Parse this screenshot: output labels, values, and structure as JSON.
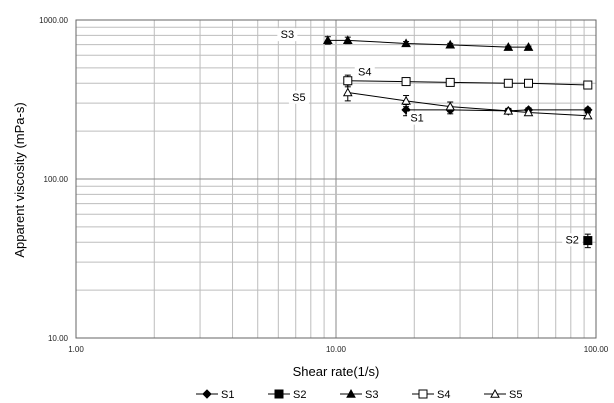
{
  "chart_data": {
    "type": "scatter",
    "xscale": "log",
    "yscale": "log",
    "xlim": [
      1,
      100
    ],
    "ylim": [
      10,
      1000
    ],
    "grid": true,
    "legend_position": "bottom",
    "xlabel": "Shear rate(1/s)",
    "ylabel": "Apparent viscosity (mPa-s)",
    "xticks": [
      {
        "value": 1,
        "label": "1.00"
      },
      {
        "value": 10,
        "label": "10.00"
      },
      {
        "value": 100,
        "label": "100.00"
      }
    ],
    "yticks": [
      {
        "value": 10,
        "label": "10.00"
      },
      {
        "value": 100,
        "label": "100.00"
      },
      {
        "value": 1000,
        "label": "1000.00"
      }
    ],
    "series": [
      {
        "name": "S1",
        "marker": "diamond",
        "color": "#000000",
        "label": {
          "text": "S1",
          "x": 20.5,
          "y": 233
        },
        "points": [
          {
            "x": 18.6,
            "y": 272,
            "err": 22
          },
          {
            "x": 27.5,
            "y": 272,
            "err": 15
          },
          {
            "x": 46,
            "y": 268,
            "err": 8
          },
          {
            "x": 55,
            "y": 272,
            "err": 8
          },
          {
            "x": 93,
            "y": 272,
            "err": 8
          }
        ]
      },
      {
        "name": "S2",
        "marker": "square",
        "color": "#000000",
        "label": {
          "text": "S2",
          "x": 81,
          "y": 40
        },
        "points": [
          {
            "x": 93,
            "y": 41,
            "err": 4
          }
        ]
      },
      {
        "name": "S3",
        "marker": "triangle",
        "color": "#000000",
        "label": {
          "text": "S3",
          "x": 6.5,
          "y": 780
        },
        "points": [
          {
            "x": 9.3,
            "y": 745,
            "err": 40
          },
          {
            "x": 11.1,
            "y": 745,
            "err": 35
          },
          {
            "x": 18.6,
            "y": 712,
            "err": 20
          },
          {
            "x": 27.5,
            "y": 698,
            "err": 15
          },
          {
            "x": 46,
            "y": 675,
            "err": 10
          },
          {
            "x": 55,
            "y": 675,
            "err": 10
          }
        ]
      },
      {
        "name": "S4",
        "marker": "square-open",
        "color": "#000000",
        "label": {
          "text": "S4",
          "x": 12.9,
          "y": 455
        },
        "points": [
          {
            "x": 11.1,
            "y": 415,
            "err": 35
          },
          {
            "x": 18.6,
            "y": 410,
            "err": 15
          },
          {
            "x": 27.5,
            "y": 405,
            "err": 10
          },
          {
            "x": 46,
            "y": 400,
            "err": 10
          },
          {
            "x": 55,
            "y": 400,
            "err": 10
          },
          {
            "x": 93,
            "y": 390,
            "err": 10
          }
        ]
      },
      {
        "name": "S5",
        "marker": "triangle-open",
        "color": "#000000",
        "label": {
          "text": "S5",
          "x": 7.2,
          "y": 315
        },
        "points": [
          {
            "x": 11.1,
            "y": 350,
            "err": 40
          },
          {
            "x": 18.6,
            "y": 310,
            "err": 25
          },
          {
            "x": 27.5,
            "y": 285,
            "err": 20
          },
          {
            "x": 46,
            "y": 268,
            "err": 10
          },
          {
            "x": 55,
            "y": 262,
            "err": 10
          },
          {
            "x": 93,
            "y": 250,
            "err": 10
          }
        ]
      }
    ],
    "legend": [
      "S1",
      "S2",
      "S3",
      "S4",
      "S5"
    ]
  }
}
